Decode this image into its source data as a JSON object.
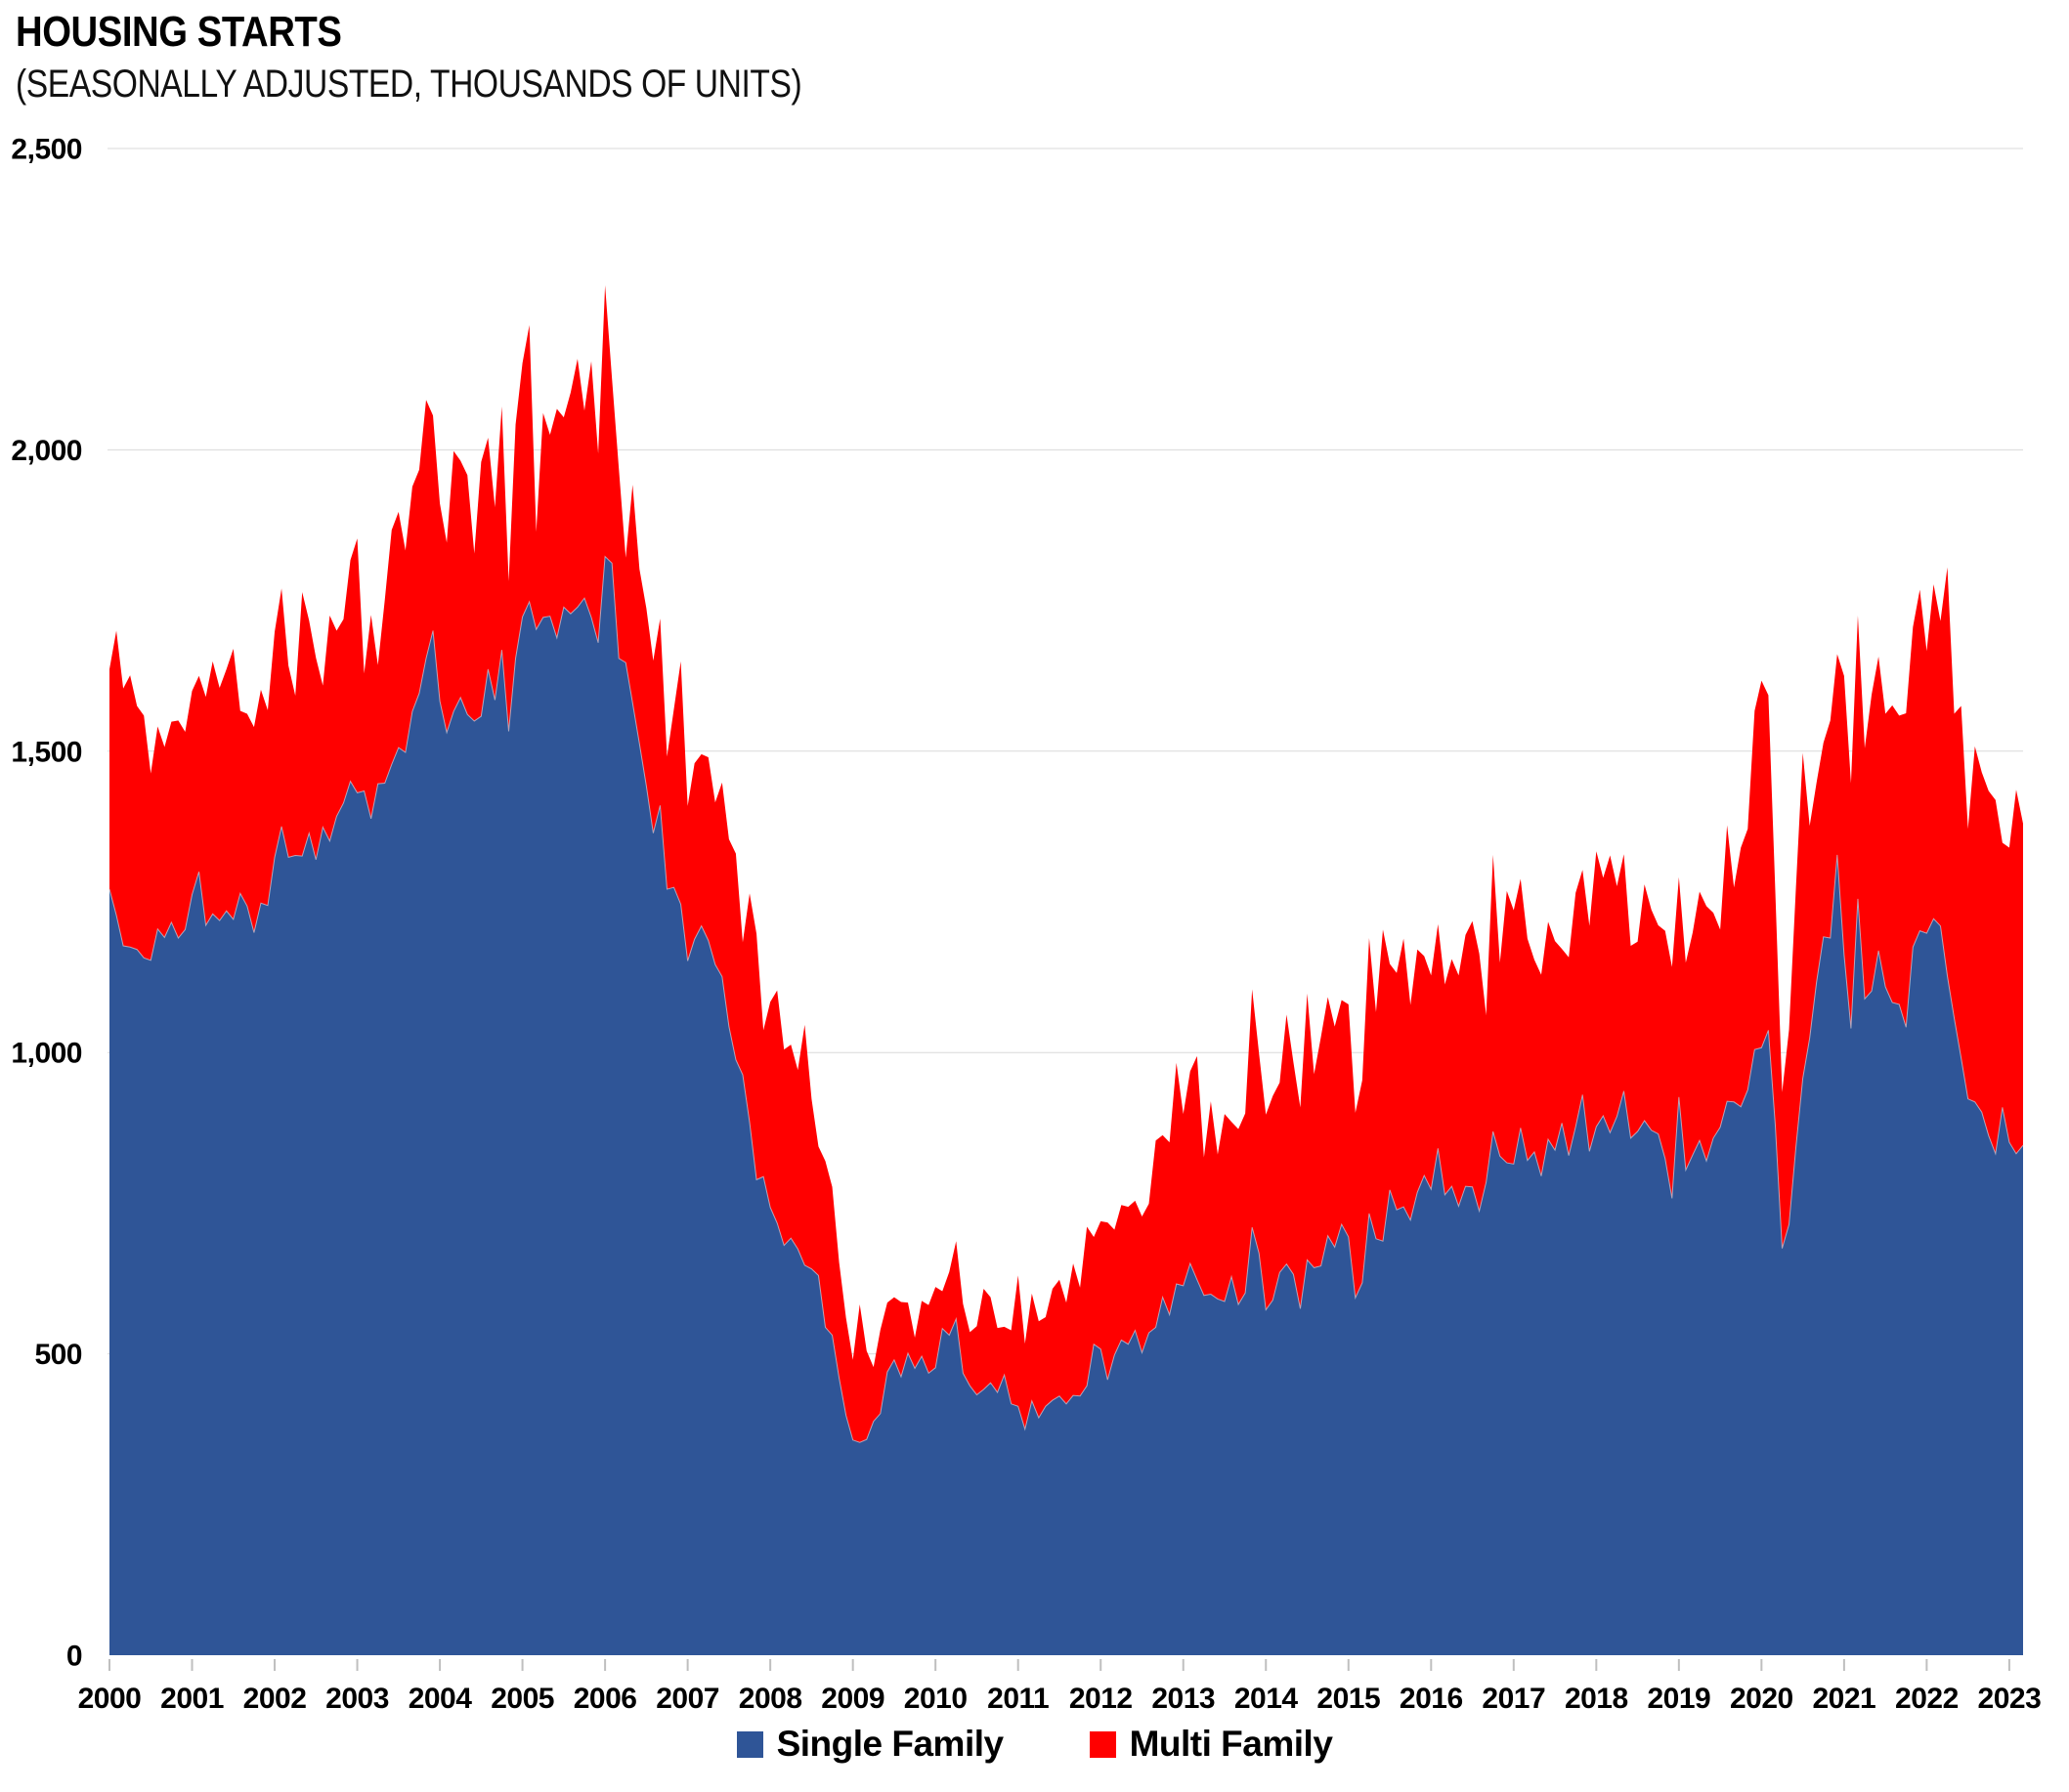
{
  "header": {
    "title": "HOUSING STARTS",
    "subtitle": "(SEASONALLY ADJUSTED, THOUSANDS OF UNITS)"
  },
  "legend": {
    "items": [
      {
        "label": "Single Family",
        "color": "#2F5597"
      },
      {
        "label": "Multi Family",
        "color": "#FF0000"
      }
    ]
  },
  "colors": {
    "single_family": "#2F5597",
    "multi_family": "#FF0000",
    "gridline": "#D9D9D9",
    "axis_tick": "#BFBFBF",
    "text": "#000000",
    "background": "#FFFFFF",
    "series_boundary": "#CDD3DF"
  },
  "chart_data": {
    "type": "area",
    "stacked": true,
    "title": "HOUSING STARTS",
    "subtitle": "(SEASONALLY ADJUSTED, THOUSANDS OF UNITS)",
    "xlabel": "",
    "ylabel": "",
    "frequency": "monthly",
    "start_year": 2000,
    "start_month": 1,
    "end_year": 2023,
    "end_month": 3,
    "ylim": [
      0,
      2500
    ],
    "y_tick_step": 500,
    "y_tick_labels": [
      "0",
      "500",
      "1,000",
      "1,500",
      "2,000",
      "2,500"
    ],
    "x_tick_labels": [
      "2000",
      "2001",
      "2002",
      "2003",
      "2004",
      "2005",
      "2006",
      "2007",
      "2008",
      "2009",
      "2010",
      "2011",
      "2012",
      "2013",
      "2014",
      "2015",
      "2016",
      "2017",
      "2018",
      "2019",
      "2020",
      "2021",
      "2022",
      "2023"
    ],
    "grid": "horizontal",
    "legend_position": "bottom-center",
    "series": [
      {
        "name": "Single Family",
        "color": "#2F5597",
        "values": [
          1271,
          1228,
          1177,
          1175,
          1171,
          1157,
          1153,
          1205,
          1191,
          1216,
          1190,
          1204,
          1262,
          1300,
          1211,
          1230,
          1219,
          1235,
          1221,
          1264,
          1243,
          1199,
          1248,
          1244,
          1324,
          1375,
          1324,
          1327,
          1326,
          1364,
          1320,
          1374,
          1351,
          1392,
          1414,
          1450,
          1431,
          1434,
          1388,
          1446,
          1447,
          1478,
          1506,
          1498,
          1566,
          1596,
          1654,
          1700,
          1583,
          1531,
          1566,
          1589,
          1561,
          1550,
          1558,
          1636,
          1585,
          1668,
          1533,
          1654,
          1723,
          1748,
          1702,
          1722,
          1724,
          1688,
          1739,
          1728,
          1739,
          1754,
          1722,
          1680,
          1823,
          1812,
          1654,
          1647,
          1580,
          1512,
          1442,
          1364,
          1410,
          1271,
          1274,
          1246,
          1152,
          1188,
          1210,
          1186,
          1146,
          1126,
          1043,
          988,
          963,
          884,
          789,
          794,
          743,
          717,
          680,
          692,
          674,
          647,
          641,
          630,
          544,
          531,
          460,
          398,
          357,
          353,
          358,
          388,
          401,
          470,
          490,
          462,
          501,
          476,
          496,
          468,
          477,
          542,
          531,
          558,
          468,
          447,
          432,
          441,
          452,
          436,
          465,
          417,
          413,
          375,
          422,
          394,
          413,
          423,
          430,
          417,
          431,
          430,
          447,
          516,
          508,
          457,
          498,
          523,
          516,
          539,
          502,
          535,
          544,
          594,
          565,
          616,
          613,
          650,
          623,
          597,
          599,
          591,
          587,
          628,
          582,
          601,
          710,
          667,
          573,
          589,
          635,
          649,
          632,
          575,
          656,
          643,
          646,
          696,
          677,
          715,
          694,
          593,
          618,
          733,
          691,
          687,
          772,
          739,
          744,
          722,
          768,
          796,
          773,
          841,
          764,
          778,
          745,
          778,
          777,
          737,
          785,
          869,
          828,
          817,
          815,
          875,
          821,
          835,
          795,
          856,
          838,
          883,
          829,
          877,
          930,
          836,
          877,
          895,
          867,
          894,
          936,
          858,
          869,
          887,
          871,
          865,
          824,
          758,
          926,
          805,
          830,
          854,
          820,
          858,
          876,
          919,
          918,
          910,
          938,
          1005,
          1008,
          1037,
          880,
          675,
          715,
          843,
          957,
          1024,
          1117,
          1192,
          1190,
          1328,
          1162,
          1040,
          1255,
          1089,
          1102,
          1169,
          1109,
          1083,
          1080,
          1042,
          1175,
          1202,
          1198,
          1222,
          1210,
          1127,
          1057,
          991,
          923,
          918,
          901,
          862,
          832,
          909,
          851,
          832,
          846
        ]
      },
      {
        "name": "Multi Family",
        "color": "#FF0000",
        "values": [
          365,
          472,
          427,
          451,
          404,
          402,
          310,
          336,
          316,
          333,
          361,
          328,
          338,
          325,
          379,
          419,
          386,
          401,
          449,
          303,
          319,
          341,
          354,
          324,
          374,
          395,
          318,
          265,
          438,
          353,
          335,
          235,
          374,
          308,
          305,
          367,
          422,
          195,
          338,
          197,
          304,
          389,
          391,
          335,
          373,
          371,
          429,
          357,
          328,
          315,
          432,
          393,
          397,
          278,
          422,
          384,
          320,
          404,
          249,
          388,
          421,
          459,
          162,
          339,
          301,
          380,
          315,
          367,
          412,
          311,
          425,
          314,
          450,
          307,
          315,
          174,
          362,
          290,
          295,
          286,
          310,
          220,
          296,
          403,
          257,
          292,
          285,
          304,
          269,
          322,
          311,
          342,
          220,
          380,
          408,
          243,
          341,
          386,
          325,
          321,
          297,
          399,
          282,
          214,
          276,
          246,
          192,
          162,
          133,
          229,
          147,
          90,
          139,
          115,
          104,
          124,
          84,
          51,
          92,
          113,
          134,
          62,
          105,
          129,
          115,
          89,
          114,
          167,
          142,
          107,
          80,
          122,
          217,
          142,
          178,
          160,
          148,
          185,
          193,
          168,
          219,
          180,
          264,
          178,
          212,
          261,
          208,
          224,
          228,
          215,
          226,
          214,
          310,
          269,
          286,
          367,
          285,
          319,
          371,
          229,
          320,
          240,
          311,
          257,
          291,
          298,
          395,
          332,
          324,
          339,
          315,
          414,
          352,
          334,
          442,
          321,
          380,
          396,
          366,
          372,
          386,
          307,
          336,
          457,
          376,
          517,
          375,
          393,
          445,
          357,
          403,
          364,
          355,
          372,
          349,
          377,
          383,
          417,
          441,
          427,
          277,
          459,
          321,
          451,
          421,
          413,
          368,
          319,
          334,
          361,
          347,
          289,
          329,
          388,
          373,
          374,
          457,
          395,
          460,
          382,
          393,
          319,
          315,
          392,
          366,
          346,
          378,
          384,
          365,
          344,
          369,
          413,
          423,
          374,
          328,
          458,
          356,
          430,
          433,
          562,
          609,
          556,
          389,
          259,
          323,
          430,
          540,
          352,
          331,
          322,
          361,
          333,
          463,
          407,
          470,
          416,
          492,
          488,
          453,
          493,
          479,
          521,
          531,
          566,
          468,
          555,
          506,
          678,
          505,
          584,
          448,
          590,
          564,
          572,
          587,
          439,
          489,
          604,
          534
        ]
      }
    ]
  }
}
